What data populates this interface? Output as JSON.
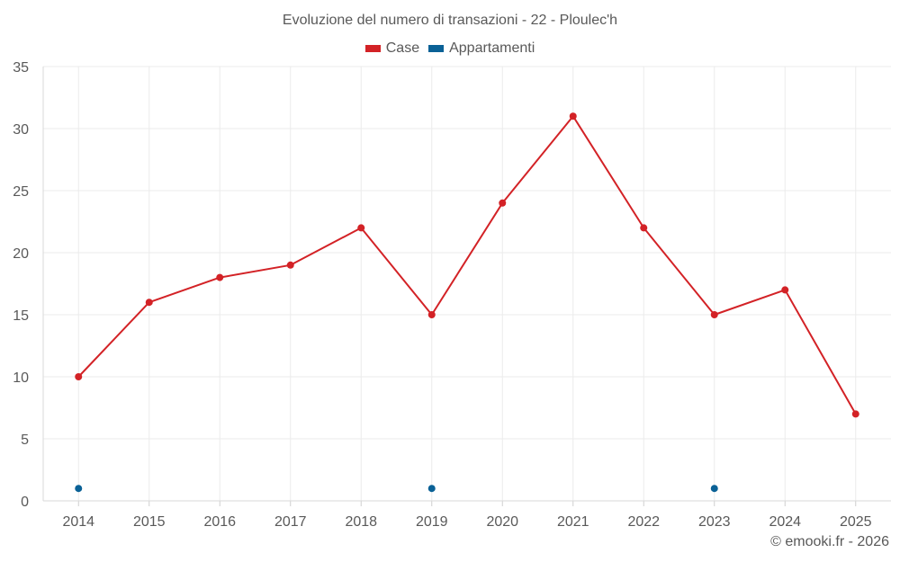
{
  "chart_data": {
    "type": "line",
    "title": "Evoluzione del numero di transazioni - 22 - Ploulec'h",
    "categories": [
      "2014",
      "2015",
      "2016",
      "2017",
      "2018",
      "2019",
      "2020",
      "2021",
      "2022",
      "2023",
      "2024",
      "2025"
    ],
    "series": [
      {
        "name": "Case",
        "color": "#d32226",
        "values": [
          10,
          16,
          18,
          19,
          22,
          15,
          24,
          31,
          22,
          15,
          17,
          7
        ],
        "style": "line"
      },
      {
        "name": "Appartamenti",
        "color": "#0a6196",
        "values": [
          1,
          null,
          null,
          null,
          null,
          1,
          null,
          null,
          null,
          1,
          null,
          null
        ],
        "style": "points"
      }
    ],
    "ylim": [
      0,
      35
    ],
    "yticks": [
      0,
      5,
      10,
      15,
      20,
      25,
      30,
      35
    ],
    "xlabel": "",
    "ylabel": "",
    "grid": true,
    "legend": "top-center"
  },
  "credit": "© emooki.fr - 2026"
}
